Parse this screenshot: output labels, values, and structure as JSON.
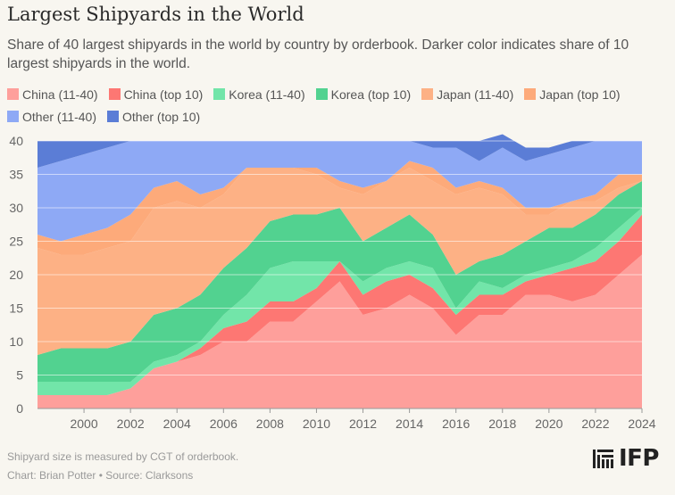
{
  "title": "Largest Shipyards in the World",
  "subtitle": "Share of 40 largest shipyards in the world by country by orderbook. Darker color indicates share of 10 largest shipyards in the world.",
  "footnote": "Shipyard size is measured by CGT of orderbook.",
  "credit": "Chart: Brian Potter • Source: Clarksons",
  "logo": "IFP",
  "chart_data": {
    "type": "area",
    "stacked": true,
    "x": [
      1998,
      1999,
      2000,
      2001,
      2002,
      2003,
      2004,
      2005,
      2006,
      2007,
      2008,
      2009,
      2010,
      2011,
      2012,
      2013,
      2014,
      2015,
      2016,
      2017,
      2018,
      2019,
      2020,
      2021,
      2022,
      2023,
      2024
    ],
    "xticks": [
      2000,
      2002,
      2004,
      2006,
      2008,
      2010,
      2012,
      2014,
      2016,
      2018,
      2020,
      2022,
      2024
    ],
    "ylim": [
      0,
      40
    ],
    "yticks": [
      0,
      5,
      10,
      15,
      20,
      25,
      30,
      35,
      40
    ],
    "grid": true,
    "series": [
      {
        "name": "China (11-40)",
        "color": "#fe9f9b",
        "values": [
          2,
          2,
          2,
          2,
          3,
          6,
          7,
          8,
          10,
          10,
          13,
          13,
          16,
          19,
          14,
          15,
          17,
          15,
          11,
          14,
          14,
          17,
          17,
          16,
          17,
          20,
          23
        ]
      },
      {
        "name": "China (top 10)",
        "color": "#fd7773",
        "values": [
          0,
          0,
          0,
          0,
          0,
          0,
          0,
          1,
          2,
          3,
          3,
          3,
          2,
          3,
          3,
          4,
          3,
          3,
          3,
          3,
          3,
          2,
          3,
          5,
          5,
          5,
          6
        ]
      },
      {
        "name": "Korea (11-40)",
        "color": "#72e5a9",
        "values": [
          2,
          2,
          2,
          2,
          1,
          1,
          1,
          1,
          2,
          4,
          5,
          6,
          4,
          0,
          2,
          2,
          2,
          3,
          1,
          2,
          1,
          1,
          1,
          1,
          2,
          2,
          1
        ]
      },
      {
        "name": "Korea (top 10)",
        "color": "#52d290",
        "values": [
          4,
          5,
          5,
          5,
          6,
          7,
          7,
          7,
          7,
          7,
          7,
          7,
          7,
          8,
          6,
          6,
          7,
          5,
          5,
          3,
          5,
          5,
          6,
          5,
          5,
          5,
          4
        ]
      },
      {
        "name": "Japan (11-40)",
        "color": "#fdb185",
        "values": [
          16,
          14,
          14,
          15,
          15,
          16,
          16,
          13,
          11,
          12,
          8,
          7,
          6,
          3,
          7,
          7,
          7,
          8,
          12,
          11,
          9,
          4,
          2,
          4,
          2,
          1,
          0
        ]
      },
      {
        "name": "Japan (top 10)",
        "color": "#fdaa7a",
        "values": [
          2,
          2,
          3,
          3,
          4,
          3,
          3,
          2,
          1,
          0,
          0,
          0,
          1,
          1,
          1,
          0,
          1,
          2,
          1,
          1,
          1,
          1,
          1,
          0,
          1,
          2,
          1
        ]
      },
      {
        "name": "Other (11-40)",
        "color": "#8ea9f5",
        "values": [
          10,
          12,
          12,
          12,
          11,
          7,
          6,
          8,
          7,
          4,
          4,
          4,
          4,
          6,
          7,
          6,
          3,
          3,
          6,
          3,
          6,
          7,
          8,
          8,
          8,
          5,
          5
        ]
      },
      {
        "name": "Other (top 10)",
        "color": "#5b7dd6",
        "values": [
          4,
          3,
          2,
          1,
          0,
          0,
          0,
          0,
          0,
          0,
          0,
          0,
          0,
          0,
          0,
          0,
          0,
          1,
          1,
          3,
          2,
          2,
          1,
          1,
          0,
          0,
          0
        ]
      }
    ]
  }
}
